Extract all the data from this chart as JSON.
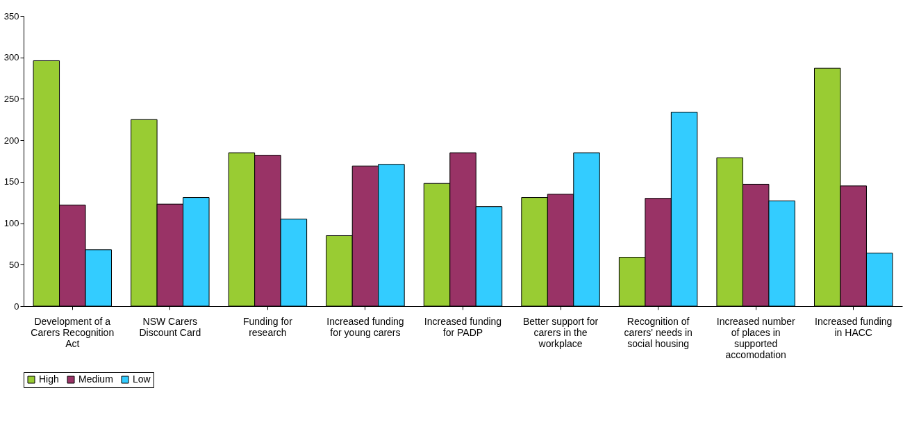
{
  "chart_data": {
    "type": "bar",
    "categories": [
      "Development of a Carers Recognition Act",
      "NSW Carers Discount Card",
      "Funding for research",
      "Increased funding for young carers",
      "Increased funding for PADP",
      "Better support for carers in the workplace",
      "Recognition of carers' needs in social housing",
      "Increased number of places in supported accomodation",
      "Increased funding in HACC"
    ],
    "series": [
      {
        "name": "High",
        "color": "#99cc33",
        "values": [
          296,
          225,
          185,
          85,
          148,
          131,
          59,
          179,
          287
        ]
      },
      {
        "name": "Medium",
        "color": "#993366",
        "values": [
          122,
          123,
          182,
          169,
          185,
          135,
          130,
          147,
          145
        ]
      },
      {
        "name": "Low",
        "color": "#33ccff",
        "values": [
          68,
          131,
          105,
          171,
          120,
          185,
          234,
          127,
          64
        ]
      }
    ],
    "ylim": [
      0,
      350
    ],
    "yticks": [
      0,
      50,
      100,
      150,
      200,
      250,
      300,
      350
    ],
    "grid": false,
    "legend": "bottom"
  }
}
